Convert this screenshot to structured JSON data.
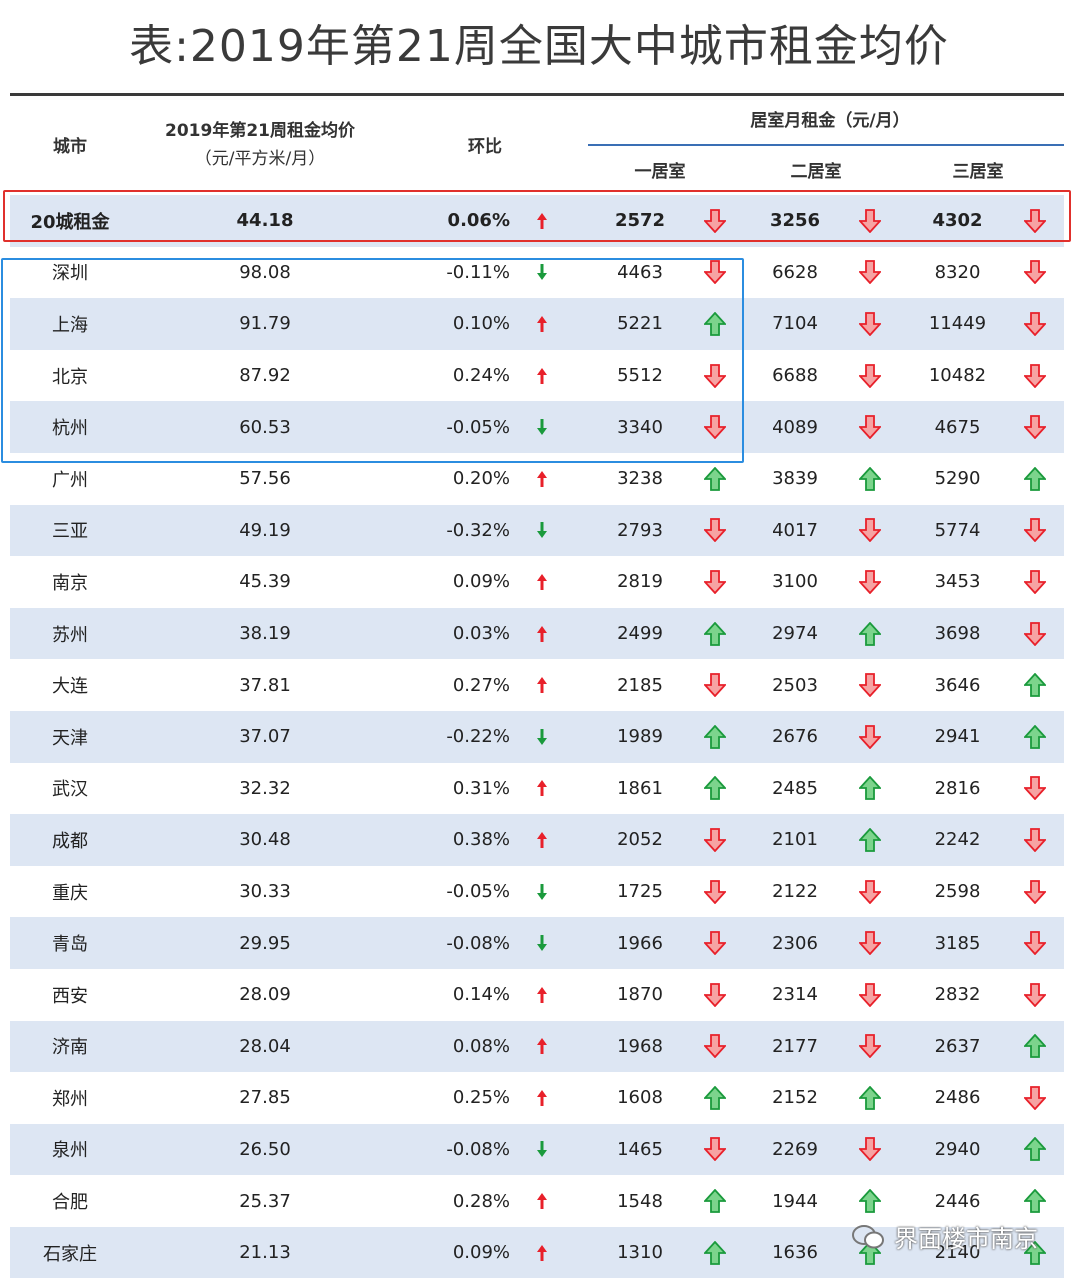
{
  "title": "表:2019年第21周全国大中城市租金均价",
  "header": {
    "city": "城市",
    "avg_line1": "2019年第21周租金均价",
    "avg_line2": "（元/平方米/月）",
    "mom": "环比",
    "group": "居室月租金（元/月）",
    "r1": "一居室",
    "r2": "二居室",
    "r3": "三居室"
  },
  "colors": {
    "up": "#e8202a",
    "down": "#1a9a3c",
    "red_box": "#e0302c",
    "blue_box": "#2b8de0",
    "alt_row": "#dde6f3"
  },
  "rows": [
    {
      "city": "20城租金",
      "avg": "44.18",
      "mom": "0.06%",
      "mom_dir": "up",
      "r1": "2572",
      "r1_dir": "down",
      "r2": "3256",
      "r2_dir": "down",
      "r3": "4302",
      "r3_dir": "down"
    },
    {
      "city": "深圳",
      "avg": "98.08",
      "mom": "-0.11%",
      "mom_dir": "down",
      "r1": "4463",
      "r1_dir": "down",
      "r2": "6628",
      "r2_dir": "down",
      "r3": "8320",
      "r3_dir": "down"
    },
    {
      "city": "上海",
      "avg": "91.79",
      "mom": "0.10%",
      "mom_dir": "up",
      "r1": "5221",
      "r1_dir": "up",
      "r2": "7104",
      "r2_dir": "down",
      "r3": "11449",
      "r3_dir": "down"
    },
    {
      "city": "北京",
      "avg": "87.92",
      "mom": "0.24%",
      "mom_dir": "up",
      "r1": "5512",
      "r1_dir": "down",
      "r2": "6688",
      "r2_dir": "down",
      "r3": "10482",
      "r3_dir": "down"
    },
    {
      "city": "杭州",
      "avg": "60.53",
      "mom": "-0.05%",
      "mom_dir": "down",
      "r1": "3340",
      "r1_dir": "down",
      "r2": "4089",
      "r2_dir": "down",
      "r3": "4675",
      "r3_dir": "down"
    },
    {
      "city": "广州",
      "avg": "57.56",
      "mom": "0.20%",
      "mom_dir": "up",
      "r1": "3238",
      "r1_dir": "up",
      "r2": "3839",
      "r2_dir": "up",
      "r3": "5290",
      "r3_dir": "up"
    },
    {
      "city": "三亚",
      "avg": "49.19",
      "mom": "-0.32%",
      "mom_dir": "down",
      "r1": "2793",
      "r1_dir": "down",
      "r2": "4017",
      "r2_dir": "down",
      "r3": "5774",
      "r3_dir": "down"
    },
    {
      "city": "南京",
      "avg": "45.39",
      "mom": "0.09%",
      "mom_dir": "up",
      "r1": "2819",
      "r1_dir": "down",
      "r2": "3100",
      "r2_dir": "down",
      "r3": "3453",
      "r3_dir": "down"
    },
    {
      "city": "苏州",
      "avg": "38.19",
      "mom": "0.03%",
      "mom_dir": "up",
      "r1": "2499",
      "r1_dir": "up",
      "r2": "2974",
      "r2_dir": "up",
      "r3": "3698",
      "r3_dir": "down"
    },
    {
      "city": "大连",
      "avg": "37.81",
      "mom": "0.27%",
      "mom_dir": "up",
      "r1": "2185",
      "r1_dir": "down",
      "r2": "2503",
      "r2_dir": "down",
      "r3": "3646",
      "r3_dir": "up"
    },
    {
      "city": "天津",
      "avg": "37.07",
      "mom": "-0.22%",
      "mom_dir": "down",
      "r1": "1989",
      "r1_dir": "up",
      "r2": "2676",
      "r2_dir": "down",
      "r3": "2941",
      "r3_dir": "up"
    },
    {
      "city": "武汉",
      "avg": "32.32",
      "mom": "0.31%",
      "mom_dir": "up",
      "r1": "1861",
      "r1_dir": "up",
      "r2": "2485",
      "r2_dir": "up",
      "r3": "2816",
      "r3_dir": "down"
    },
    {
      "city": "成都",
      "avg": "30.48",
      "mom": "0.38%",
      "mom_dir": "up",
      "r1": "2052",
      "r1_dir": "down",
      "r2": "2101",
      "r2_dir": "up",
      "r3": "2242",
      "r3_dir": "down"
    },
    {
      "city": "重庆",
      "avg": "30.33",
      "mom": "-0.05%",
      "mom_dir": "down",
      "r1": "1725",
      "r1_dir": "down",
      "r2": "2122",
      "r2_dir": "down",
      "r3": "2598",
      "r3_dir": "down"
    },
    {
      "city": "青岛",
      "avg": "29.95",
      "mom": "-0.08%",
      "mom_dir": "down",
      "r1": "1966",
      "r1_dir": "down",
      "r2": "2306",
      "r2_dir": "down",
      "r3": "3185",
      "r3_dir": "down"
    },
    {
      "city": "西安",
      "avg": "28.09",
      "mom": "0.14%",
      "mom_dir": "up",
      "r1": "1870",
      "r1_dir": "down",
      "r2": "2314",
      "r2_dir": "down",
      "r3": "2832",
      "r3_dir": "down"
    },
    {
      "city": "济南",
      "avg": "28.04",
      "mom": "0.08%",
      "mom_dir": "up",
      "r1": "1968",
      "r1_dir": "down",
      "r2": "2177",
      "r2_dir": "down",
      "r3": "2637",
      "r3_dir": "up"
    },
    {
      "city": "郑州",
      "avg": "27.85",
      "mom": "0.25%",
      "mom_dir": "up",
      "r1": "1608",
      "r1_dir": "up",
      "r2": "2152",
      "r2_dir": "up",
      "r3": "2486",
      "r3_dir": "down"
    },
    {
      "city": "泉州",
      "avg": "26.50",
      "mom": "-0.08%",
      "mom_dir": "down",
      "r1": "1465",
      "r1_dir": "down",
      "r2": "2269",
      "r2_dir": "down",
      "r3": "2940",
      "r3_dir": "up"
    },
    {
      "city": "合肥",
      "avg": "25.37",
      "mom": "0.28%",
      "mom_dir": "up",
      "r1": "1548",
      "r1_dir": "up",
      "r2": "1944",
      "r2_dir": "up",
      "r3": "2446",
      "r3_dir": "up"
    },
    {
      "city": "石家庄",
      "avg": "21.13",
      "mom": "0.09%",
      "mom_dir": "up",
      "r1": "1310",
      "r1_dir": "up",
      "r2": "1636",
      "r2_dir": "up",
      "r3": "2140",
      "r3_dir": "up"
    }
  ],
  "watermark": "界面楼市南京"
}
